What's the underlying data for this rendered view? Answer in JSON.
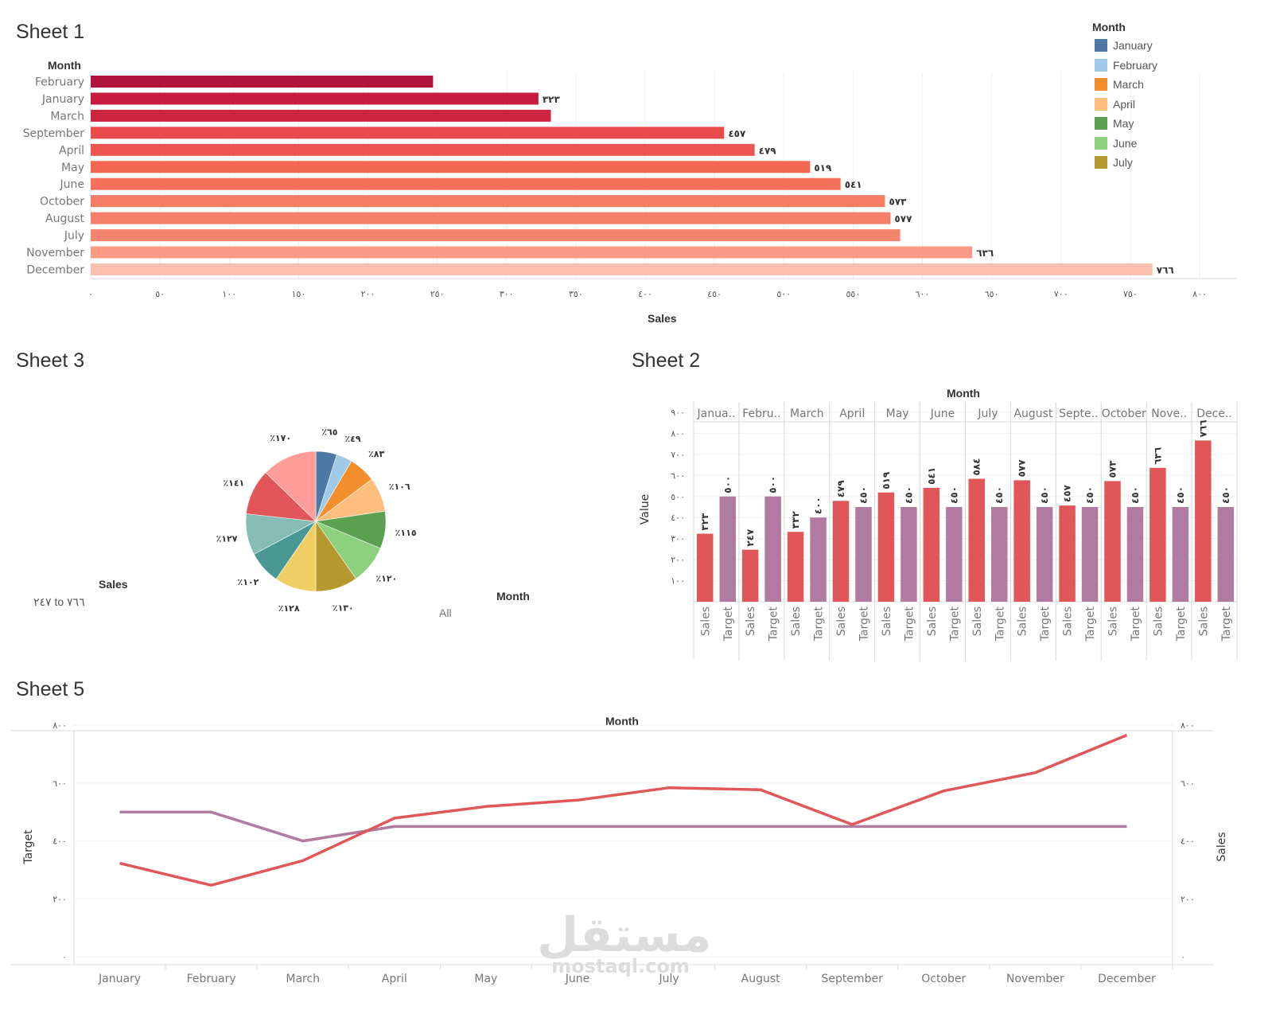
{
  "sheets": {
    "sheet1": {
      "title": "Sheet 1"
    },
    "sheet2": {
      "title": "Sheet 2"
    },
    "sheet3": {
      "title": "Sheet 3"
    },
    "sheet5": {
      "title": "Sheet 5"
    }
  },
  "legend": {
    "title": "Month",
    "items": [
      {
        "label": "January",
        "color": "#4e79a7"
      },
      {
        "label": "February",
        "color": "#a0cbe8"
      },
      {
        "label": "March",
        "color": "#f28e2b"
      },
      {
        "label": "April",
        "color": "#ffbe7d"
      },
      {
        "label": "May",
        "color": "#59a14f"
      },
      {
        "label": "June",
        "color": "#8cd17d"
      },
      {
        "label": "July",
        "color": "#b6992d"
      }
    ]
  },
  "sheet3_labels": {
    "size_title": "Sales",
    "size_range": "٢٤٧ to ٧٦٦",
    "color_title": "Month",
    "color_value": "All"
  },
  "watermark": {
    "arabic": "مستقل",
    "latin": "mostaql.com"
  },
  "chart_data": [
    {
      "id": "sheet1",
      "type": "bar",
      "orientation": "horizontal",
      "title": "Sheet 1",
      "row_header": "Month",
      "xlabel": "Sales",
      "categories": [
        "February",
        "January",
        "March",
        "September",
        "April",
        "May",
        "June",
        "October",
        "August",
        "July",
        "November",
        "December"
      ],
      "values": [
        247,
        323,
        332,
        457,
        479,
        519,
        541,
        573,
        577,
        584,
        636,
        766
      ],
      "data_labels": [
        "",
        "٣٢٣",
        "",
        "٤٥٧",
        "٤٧٩",
        "٥١٩",
        "٥٤١",
        "٥٧٣",
        "٥٧٧",
        "",
        "٦٣٦",
        "٧٦٦"
      ],
      "colors": [
        "#b0133c",
        "#c81c3f",
        "#cd2540",
        "#e94a4a",
        "#ef5550",
        "#f3664f",
        "#f47059",
        "#f47c64",
        "#f5806a",
        "#f5846e",
        "#fa9c85",
        "#fdc0af"
      ],
      "xlim": [
        0,
        800
      ],
      "xticks": [
        0,
        50,
        100,
        150,
        200,
        250,
        300,
        350,
        400,
        450,
        500,
        550,
        600,
        650,
        700,
        750,
        800
      ],
      "xtick_labels": [
        "٠",
        "٥٠",
        "١٠٠",
        "١٥٠",
        "٢٠٠",
        "٢٥٠",
        "٣٠٠",
        "٣٥٠",
        "٤٠٠",
        "٤٥٠",
        "٥٠٠",
        "٥٥٠",
        "٦٠٠",
        "٦٥٠",
        "٧٠٠",
        "٧٥٠",
        "٨٠٠"
      ]
    },
    {
      "id": "sheet3",
      "type": "pie",
      "title": "Sheet 3",
      "categories": [
        "January",
        "February",
        "March",
        "April",
        "May",
        "June",
        "July",
        "August",
        "September",
        "October",
        "November",
        "December"
      ],
      "values": [
        65,
        49,
        83,
        106,
        115,
        120,
        130,
        128,
        102,
        127,
        141,
        170
      ],
      "labels": [
        "٪٦٥",
        "٪٤٩",
        "٪٨٣",
        "٪١٠٦",
        "٪١١٥",
        "٪١٢٠",
        "٪١٣٠",
        "٪١٢٨",
        "٪١٠٢",
        "٪١٢٧",
        "٪١٤١",
        "٪١٧٠"
      ],
      "colors": [
        "#4e79a7",
        "#a0cbe8",
        "#f28e2b",
        "#ffbe7d",
        "#59a14f",
        "#8cd17d",
        "#b6992d",
        "#f1ce63",
        "#499894",
        "#86bcb6",
        "#e15759",
        "#ff9d9a"
      ]
    },
    {
      "id": "sheet2",
      "type": "bar",
      "title": "Sheet 2",
      "column_header": "Month",
      "ylabel": "Value",
      "categories": [
        "Janua..",
        "Febru..",
        "March",
        "April",
        "May",
        "June",
        "July",
        "August",
        "Septe..",
        "October",
        "Nove..",
        "Dece.."
      ],
      "measures": [
        "Sales",
        "Target"
      ],
      "series": [
        {
          "name": "Sales",
          "color": "#e15759",
          "values": [
            323,
            247,
            332,
            479,
            519,
            541,
            584,
            577,
            457,
            573,
            636,
            766
          ],
          "labels": [
            "٣٢٣",
            "٢٤٧",
            "٣٣٢",
            "٤٧٩",
            "٥١٩",
            "٥٤١",
            "٥٨٤",
            "٥٧٧",
            "٤٥٧",
            "٥٧٣",
            "٦٣٦",
            "٧٦٦"
          ]
        },
        {
          "name": "Target",
          "color": "#b07aa1",
          "values": [
            500,
            500,
            400,
            450,
            450,
            450,
            450,
            450,
            450,
            450,
            450,
            450
          ],
          "labels": [
            "٥٠٠",
            "٥٠٠",
            "٤٠٠",
            "٤٥٠",
            "٤٥٠",
            "٤٥٠",
            "٤٥٠",
            "٤٥٠",
            "٤٥٠",
            "٤٥٠",
            "٤٥٠",
            "٤٥٠"
          ]
        }
      ],
      "ylim": [
        0,
        900
      ],
      "yticks": [
        100,
        200,
        300,
        400,
        500,
        600,
        700,
        800,
        900
      ],
      "ytick_labels": [
        "١٠٠",
        "٢٠٠",
        "٣٠٠",
        "٤٠٠",
        "٥٠٠",
        "٦٠٠",
        "٧٠٠",
        "٨٠٠",
        "٩٠٠"
      ]
    },
    {
      "id": "sheet5",
      "type": "line",
      "title": "Sheet 5",
      "xlabel": "Month",
      "ylabel_left": "Target",
      "ylabel_right": "Sales",
      "categories": [
        "January",
        "February",
        "March",
        "April",
        "May",
        "June",
        "July",
        "August",
        "September",
        "October",
        "November",
        "December"
      ],
      "series": [
        {
          "name": "Target",
          "axis": "left",
          "color": "#b07aa1",
          "values": [
            500,
            500,
            400,
            450,
            450,
            450,
            450,
            450,
            450,
            450,
            450,
            450
          ]
        },
        {
          "name": "Sales",
          "axis": "right",
          "color": "#e15759",
          "values": [
            323,
            247,
            332,
            479,
            519,
            541,
            584,
            577,
            457,
            573,
            636,
            766
          ]
        }
      ],
      "ylim": [
        0,
        800
      ],
      "yticks": [
        0,
        200,
        400,
        600,
        800
      ],
      "ytick_labels": [
        "٠",
        "٢٠٠",
        "٤٠٠",
        "٦٠٠",
        "٨٠٠"
      ]
    }
  ]
}
